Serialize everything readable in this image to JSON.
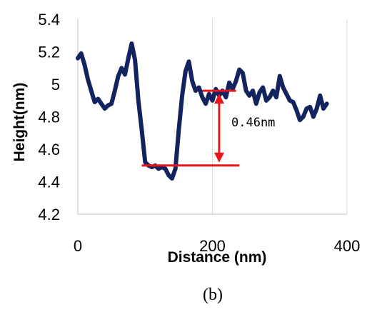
{
  "chart_data": {
    "type": "line",
    "xlabel": "Distance (nm)",
    "ylabel": "Height(nm)",
    "xlim": [
      0,
      400
    ],
    "ylim": [
      4.2,
      5.4
    ],
    "x_ticks": [
      "0",
      "200",
      "400"
    ],
    "y_ticks": [
      "4.2",
      "4.4",
      "4.6",
      "4.8",
      "5",
      "5.2",
      "5.4"
    ],
    "grid": "vertical",
    "line_color": "#13235e",
    "series": [
      {
        "x": [
          0,
          5,
          10,
          15,
          20,
          25,
          30,
          35,
          40,
          45,
          50,
          55,
          60,
          65,
          70,
          75,
          80,
          85,
          90,
          95,
          100,
          105,
          110,
          115,
          120,
          125,
          130,
          135,
          140,
          145,
          150,
          155,
          160,
          165,
          170,
          175,
          180,
          185,
          190,
          195,
          200,
          205,
          210,
          215,
          220,
          225,
          230,
          235,
          240,
          245,
          250,
          255,
          260,
          265,
          270,
          275,
          280,
          285,
          290,
          295,
          300,
          305,
          310,
          315,
          320,
          325,
          330,
          335,
          340,
          345,
          350,
          355,
          360,
          365,
          370
        ],
        "y": [
          5.16,
          5.19,
          5.12,
          5.03,
          4.96,
          4.89,
          4.91,
          4.88,
          4.85,
          4.87,
          4.88,
          4.96,
          5.05,
          5.1,
          5.06,
          5.16,
          5.25,
          5.15,
          4.9,
          4.72,
          4.52,
          4.5,
          4.49,
          4.5,
          4.48,
          4.49,
          4.48,
          4.44,
          4.42,
          4.48,
          4.72,
          4.93,
          5.08,
          5.14,
          5.02,
          4.96,
          4.98,
          4.92,
          4.88,
          4.94,
          4.9,
          4.97,
          4.93,
          4.96,
          4.92,
          5.01,
          4.97,
          5.02,
          5.09,
          5.07,
          4.96,
          4.93,
          4.96,
          4.88,
          4.95,
          4.98,
          4.9,
          4.92,
          4.96,
          4.92,
          5.05,
          4.98,
          4.94,
          4.9,
          4.89,
          4.84,
          4.78,
          4.8,
          4.85,
          4.86,
          4.8,
          4.85,
          4.93,
          4.85,
          4.88
        ]
      }
    ],
    "annotation": {
      "text": "0.46nm",
      "color": "#e8151b",
      "upper_line": {
        "x1": 185,
        "x2": 235,
        "y": 4.96
      },
      "lower_line": {
        "x1": 95,
        "x2": 240,
        "y": 4.5
      },
      "arrow_x": 210
    },
    "caption": "(b)"
  }
}
